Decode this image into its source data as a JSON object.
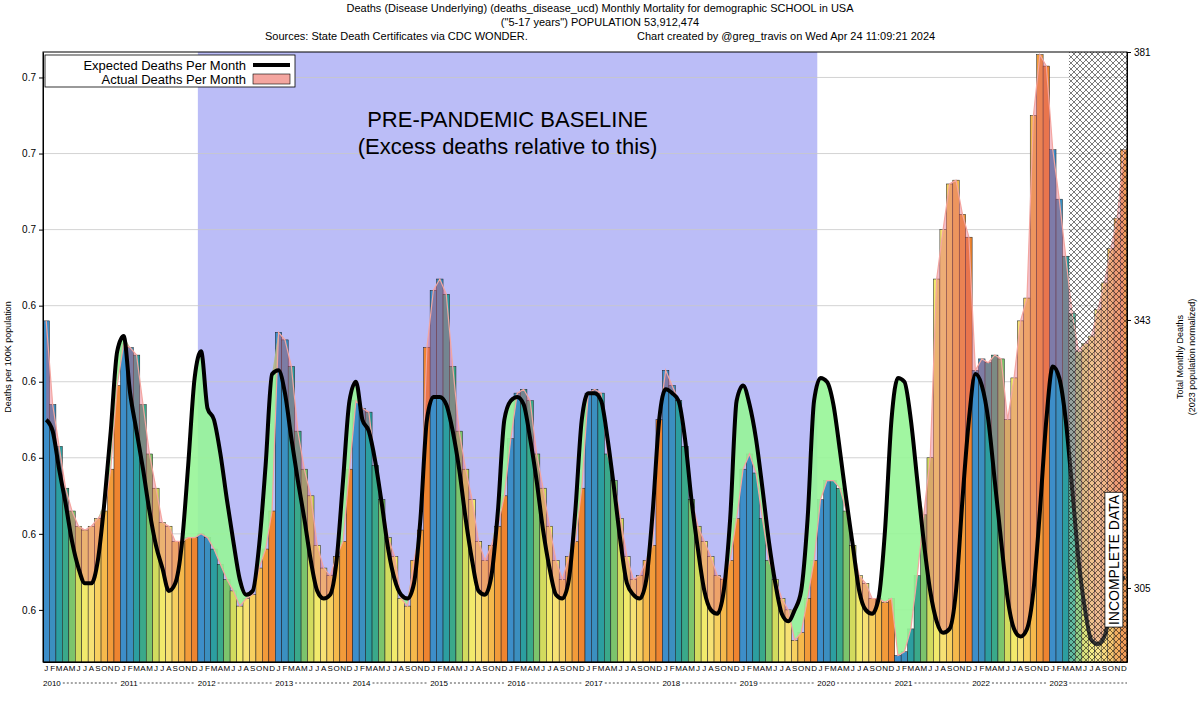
{
  "chart_data": {
    "type": "bar",
    "title": "Deaths (Disease Underlying) (deaths_disease_ucd) Monthly Mortality for demographic SCHOOL in USA",
    "subtitle": [
      "(\"5-17 years\") POPULATION 53,912,474",
      "Sources: State Death Certificates via CDC WONDER.",
      "Chart created by @greg_travis on Wed Apr 24 11:09:21 2024"
    ],
    "ylabel": "Deaths per 100K population",
    "y2label": [
      "Total Monthly Deaths",
      "(2023 population normalized)"
    ],
    "categories": [
      "J",
      "F",
      "M",
      "A",
      "M",
      "J",
      "J",
      "A",
      "S",
      "O",
      "N",
      "D",
      "J",
      "F",
      "M",
      "A",
      "M",
      "J",
      "J",
      "A",
      "S",
      "O",
      "N",
      "D",
      "J",
      "F",
      "M",
      "A",
      "M",
      "J",
      "J",
      "A",
      "S",
      "O",
      "N",
      "D",
      "J",
      "F",
      "M",
      "A",
      "M",
      "J",
      "J",
      "A",
      "S",
      "O",
      "N",
      "D",
      "J",
      "F",
      "M",
      "A",
      "M",
      "J",
      "J",
      "A",
      "S",
      "O",
      "N",
      "D",
      "J",
      "F",
      "M",
      "A",
      "M",
      "J",
      "J",
      "A",
      "S",
      "O",
      "N",
      "D",
      "J",
      "F",
      "M",
      "A",
      "M",
      "J",
      "J",
      "A",
      "S",
      "O",
      "N",
      "D",
      "J",
      "F",
      "M",
      "A",
      "M",
      "J",
      "J",
      "A",
      "S",
      "O",
      "N",
      "D",
      "J",
      "F",
      "M",
      "A",
      "M",
      "J",
      "J",
      "A",
      "S",
      "O",
      "N",
      "D",
      "J",
      "F",
      "M",
      "A",
      "M",
      "J",
      "J",
      "A",
      "S",
      "O",
      "N",
      "D",
      "J",
      "F",
      "M",
      "A",
      "M",
      "J",
      "J",
      "A",
      "S",
      "O",
      "N",
      "D",
      "J",
      "F",
      "M",
      "A",
      "M",
      "J",
      "J",
      "A",
      "S",
      "O",
      "N",
      "D",
      "J",
      "F",
      "M",
      "A",
      "M",
      "J",
      "J",
      "A",
      "S",
      "O",
      "N",
      "D",
      "J",
      "F",
      "M",
      "A",
      "M",
      "J",
      "J",
      "A",
      "S",
      "O",
      "N",
      "D"
    ],
    "year_labels": [
      "2010",
      "2011",
      "2012",
      "2013",
      "2014",
      "2015",
      "2016",
      "2017",
      "2018",
      "2019",
      "2020",
      "2021",
      "2022",
      "2023"
    ],
    "series": [
      {
        "name": "Expected Deaths Per Month",
        "type": "line",
        "color": "#000000",
        "values": [
          0.61,
          0.607,
          0.597,
          0.588,
          0.578,
          0.571,
          0.567,
          0.567,
          0.573,
          0.588,
          0.607,
          0.628,
          0.632,
          0.617,
          0.607,
          0.597,
          0.586,
          0.577,
          0.571,
          0.565,
          0.567,
          0.577,
          0.598,
          0.621,
          0.628,
          0.613,
          0.61,
          0.601,
          0.589,
          0.578,
          0.568,
          0.564,
          0.565,
          0.577,
          0.598,
          0.622,
          0.623,
          0.617,
          0.605,
          0.594,
          0.584,
          0.573,
          0.565,
          0.563,
          0.564,
          0.573,
          0.594,
          0.615,
          0.62,
          0.61,
          0.607,
          0.599,
          0.588,
          0.576,
          0.568,
          0.564,
          0.563,
          0.567,
          0.584,
          0.61,
          0.616,
          0.616,
          0.614,
          0.607,
          0.597,
          0.584,
          0.573,
          0.565,
          0.564,
          0.569,
          0.586,
          0.61,
          0.615,
          0.616,
          0.614,
          0.605,
          0.594,
          0.581,
          0.571,
          0.564,
          0.563,
          0.568,
          0.586,
          0.61,
          0.617,
          0.617,
          0.615,
          0.605,
          0.592,
          0.578,
          0.567,
          0.564,
          0.563,
          0.568,
          0.586,
          0.61,
          0.618,
          0.617,
          0.615,
          0.605,
          0.589,
          0.576,
          0.565,
          0.56,
          0.559,
          0.565,
          0.584,
          0.615,
          0.619,
          0.614,
          0.605,
          0.592,
          0.578,
          0.567,
          0.559,
          0.557,
          0.56,
          0.565,
          0.584,
          0.615,
          0.621,
          0.62,
          0.614,
          0.602,
          0.589,
          0.577,
          0.565,
          0.56,
          0.559,
          0.563,
          0.581,
          0.61,
          0.621,
          0.62,
          0.61,
          0.594,
          0.578,
          0.565,
          0.557,
          0.554,
          0.555,
          0.565,
          0.589,
          0.61,
          0.622,
          0.619,
          0.61,
          0.594,
          0.578,
          0.563,
          0.555,
          0.553,
          0.555,
          0.565,
          0.586,
          0.61,
          0.624,
          0.621,
          0.61,
          0.592,
          0.573,
          0.56,
          0.552,
          0.551,
          0.553,
          0.56,
          0.565,
          0.569
        ]
      },
      {
        "name": "Actual Deaths Per Month",
        "type": "bar",
        "color": "#f4a6a0",
        "values": [
          0.636,
          0.614,
          0.603,
          0.592,
          0.586,
          0.582,
          0.581,
          0.582,
          0.584,
          0.586,
          0.597,
          0.619,
          0.63,
          0.629,
          0.627,
          0.614,
          0.601,
          0.592,
          0.583,
          0.582,
          0.578,
          0.578,
          0.579,
          0.579,
          0.58,
          0.579,
          0.576,
          0.572,
          0.568,
          0.565,
          0.561,
          0.563,
          0.564,
          0.571,
          0.576,
          0.586,
          0.633,
          0.631,
          0.624,
          0.607,
          0.597,
          0.59,
          0.577,
          0.571,
          0.569,
          0.574,
          0.578,
          0.597,
          0.615,
          0.613,
          0.612,
          0.598,
          0.589,
          0.579,
          0.574,
          0.563,
          0.561,
          0.573,
          0.581,
          0.629,
          0.644,
          0.647,
          0.643,
          0.624,
          0.607,
          0.597,
          0.589,
          0.578,
          0.573,
          0.577,
          0.582,
          0.59,
          0.605,
          0.617,
          0.618,
          0.615,
          0.601,
          0.592,
          0.582,
          0.573,
          0.568,
          0.574,
          0.578,
          0.592,
          0.617,
          0.618,
          0.617,
          0.601,
          0.594,
          0.584,
          0.574,
          0.568,
          0.569,
          0.573,
          0.577,
          0.61,
          0.623,
          0.619,
          0.615,
          0.603,
          0.589,
          0.582,
          0.578,
          0.574,
          0.569,
          0.568,
          0.573,
          0.584,
          0.597,
          0.601,
          0.596,
          0.584,
          0.573,
          0.568,
          0.563,
          0.56,
          0.552,
          0.554,
          0.563,
          0.573,
          0.589,
          0.594,
          0.594,
          0.592,
          0.586,
          0.577,
          0.569,
          0.567,
          0.563,
          0.563,
          0.562,
          0.563,
          0.548,
          0.549,
          0.555,
          0.569,
          0.585,
          0.6,
          0.647,
          0.66,
          0.672,
          0.673,
          0.664,
          0.658,
          0.623,
          0.626,
          0.625,
          0.627,
          0.626,
          0.61,
          0.621,
          0.636,
          0.642,
          0.69,
          0.706,
          0.703,
          0.681,
          0.668,
          0.653,
          0.638,
          0.628,
          0.63,
          0.632,
          0.639,
          0.646,
          0.655,
          0.663,
          0.681
        ],
        "colors": [
          "#3d8ec9",
          "#3b8fc0",
          "#2c9ea0",
          "#3aa98a",
          "#7cc46c",
          "#d2db5e",
          "#f2ea6c",
          "#f6e174",
          "#f7d060",
          "#f5b94c",
          "#f29b3a",
          "#ee8430",
          "#3d8ec9",
          "#3b8fc0",
          "#2c9ea0",
          "#3aa98a",
          "#7cc46c",
          "#d2db5e",
          "#f2ea6c",
          "#f6e174",
          "#f7d060",
          "#f5b94c",
          "#f29b3a",
          "#ee8430",
          "#3d8ec9",
          "#3b8fc0",
          "#2c9ea0",
          "#3aa98a",
          "#7cc46c",
          "#d2db5e",
          "#f2ea6c",
          "#f6e174",
          "#f7d060",
          "#f5b94c",
          "#f29b3a",
          "#ee8430",
          "#3d8ec9",
          "#3b8fc0",
          "#2c9ea0",
          "#3aa98a",
          "#7cc46c",
          "#d2db5e",
          "#f2ea6c",
          "#f6e174",
          "#f7d060",
          "#f5b94c",
          "#f29b3a",
          "#ee8430",
          "#3d8ec9",
          "#3b8fc0",
          "#2c9ea0",
          "#3aa98a",
          "#7cc46c",
          "#d2db5e",
          "#f2ea6c",
          "#f6e174",
          "#f7d060",
          "#f5b94c",
          "#f29b3a",
          "#ee8430",
          "#3d8ec9",
          "#3b8fc0",
          "#2c9ea0",
          "#3aa98a",
          "#7cc46c",
          "#d2db5e",
          "#f2ea6c",
          "#f6e174",
          "#f7d060",
          "#f5b94c",
          "#f29b3a",
          "#ee8430",
          "#3d8ec9",
          "#3b8fc0",
          "#2c9ea0",
          "#3aa98a",
          "#7cc46c",
          "#d2db5e",
          "#f2ea6c",
          "#f6e174",
          "#f7d060",
          "#f5b94c",
          "#f29b3a",
          "#ee8430",
          "#3d8ec9",
          "#3b8fc0",
          "#2c9ea0",
          "#3aa98a",
          "#7cc46c",
          "#d2db5e",
          "#f2ea6c",
          "#f6e174",
          "#f7d060",
          "#f5b94c",
          "#f29b3a",
          "#ee8430",
          "#3d8ec9",
          "#3b8fc0",
          "#2c9ea0",
          "#3aa98a",
          "#7cc46c",
          "#d2db5e",
          "#f2ea6c",
          "#f6e174",
          "#f7d060",
          "#f5b94c",
          "#f29b3a",
          "#ee8430",
          "#3d8ec9",
          "#3b8fc0",
          "#2c9ea0",
          "#3aa98a",
          "#7cc46c",
          "#d2db5e",
          "#f2ea6c",
          "#f6e174",
          "#f7d060",
          "#f5b94c",
          "#f29b3a",
          "#ee8430",
          "#3d8ec9",
          "#3b8fc0",
          "#2c9ea0",
          "#3aa98a",
          "#7cc46c",
          "#d2db5e",
          "#f2ea6c",
          "#f6e174",
          "#f7d060",
          "#f5b94c",
          "#f29b3a",
          "#ee8430",
          "#3d8ec9",
          "#3b8fc0",
          "#2c9ea0",
          "#3aa98a",
          "#7cc46c",
          "#d2db5e",
          "#f2ea6c",
          "#f6e174",
          "#f7d060",
          "#f5b94c",
          "#f29b3a",
          "#ee8430",
          "#3d8ec9",
          "#3b8fc0",
          "#2c9ea0",
          "#3aa98a",
          "#7cc46c",
          "#d2db5e",
          "#f2ea6c",
          "#f6e174",
          "#f7d060",
          "#f5b94c",
          "#f29b3a",
          "#ee8430",
          "#3d8ec9",
          "#3b8fc0",
          "#2c9ea0",
          "#3aa98a",
          "#7cc46c",
          "#d2db5e",
          "#f2ea6c",
          "#f6e174",
          "#f7d060",
          "#f5b94c",
          "#f29b3a",
          "#ee8430"
        ]
      }
    ],
    "ylim": [
      0.5463,
      0.7067
    ],
    "yticks": [
      {
        "value": 0.56,
        "label": "0.6"
      },
      {
        "value": 0.58,
        "label": "0.6"
      },
      {
        "value": 0.6,
        "label": "0.6"
      },
      {
        "value": 0.62,
        "label": "0.6"
      },
      {
        "value": 0.64,
        "label": "0.6"
      },
      {
        "value": 0.66,
        "label": "0.7"
      },
      {
        "value": 0.68,
        "label": "0.7"
      },
      {
        "value": 0.7,
        "label": "0.7"
      }
    ],
    "y2lim": [
      294.5,
      381
    ],
    "y2ticks": [
      305,
      343,
      381
    ],
    "grid": true,
    "legend": "upper left",
    "annotations": [
      {
        "text": [
          "PRE-PANDEMIC BASELINE",
          "(Excess deaths relative to this)"
        ],
        "start": 24,
        "end": 119
      },
      {
        "text": "INCOMPLETE DATA",
        "start": 159,
        "end": 167
      }
    ]
  }
}
